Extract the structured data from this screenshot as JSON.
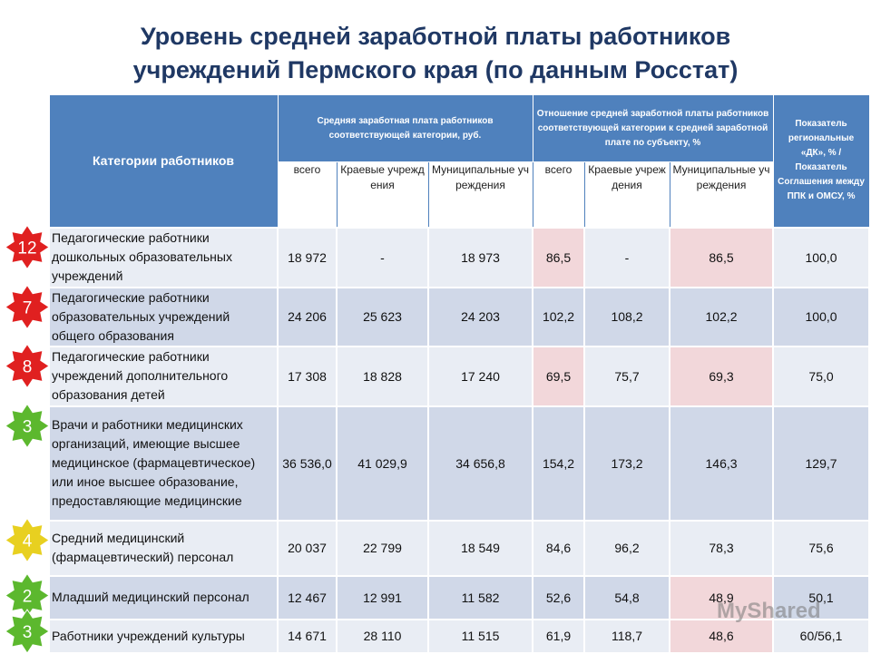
{
  "title": [
    "Уровень  средней заработной платы работников",
    "учреждений Пермского края (по данным Росстат)"
  ],
  "table": {
    "header": {
      "category": "Категории работников",
      "salary": "Средняя заработная плата работников соответствующей категории, руб.",
      "ratio": "Отношение средней заработной платы работников соответствующей категории к средней заработной плате по субъекту, %",
      "indicator": "Показатель региональные «ДК», % / Показатель Соглашения между ППК и ОМСУ, %",
      "sub": [
        "всего",
        "Краевые учреждения",
        "Муниципальные учреждения",
        "всего",
        "Краевые учреждения",
        "Муниципальные учреждения"
      ]
    },
    "rows": [
      {
        "badge": "12",
        "badge_color": "#e02020",
        "category": "Педагогические работники дошкольных образовательных учреждений",
        "cells": [
          "18 972",
          "-",
          "18 973",
          "86,5",
          "-",
          "86,5",
          "100,0"
        ],
        "highlight": [
          3,
          5
        ]
      },
      {
        "badge": "7",
        "badge_color": "#e02020",
        "category": "Педагогические работники образовательных учреждений общего образования",
        "cells": [
          "24 206",
          "25 623",
          "24 203",
          "102,2",
          "108,2",
          "102,2",
          "100,0"
        ],
        "highlight": []
      },
      {
        "badge": "8",
        "badge_color": "#e02020",
        "category": "Педагогические работники учреждений дополнительного образования детей",
        "cells": [
          "17 308",
          "18 828",
          "17 240",
          "69,5",
          "75,7",
          "69,3",
          "75,0"
        ],
        "highlight": [
          3,
          5
        ]
      },
      {
        "badge": "3",
        "badge_color": "#5cb82e",
        "category": "Врачи и работники медицинских организаций, имеющие высшее медицинское (фармацевтическое) или иное высшее образование, предоставляющие медицинские",
        "cells": [
          "36 536,0",
          "41 029,9",
          "34 656,8",
          "154,2",
          "173,2",
          "146,3",
          "129,7"
        ],
        "highlight": []
      },
      {
        "badge": "4",
        "badge_color": "#e8d020",
        "category": "Средний медицинский (фармацевтический) персонал",
        "cells": [
          "20 037",
          "22 799",
          "18 549",
          "84,6",
          "96,2",
          "78,3",
          "75,6"
        ],
        "highlight": []
      },
      {
        "badge": "2",
        "badge_color": "#5cb82e",
        "category": "Младший медицинский персонал",
        "cells": [
          "12 467",
          "12 991",
          "11 582",
          "52,6",
          "54,8",
          "48,9",
          "50,1"
        ],
        "highlight": [
          5
        ]
      },
      {
        "badge": "3",
        "badge_color": "#5cb82e",
        "category": "Работники учреждений культуры",
        "cells": [
          "14 671",
          "28 110",
          "11 515",
          "61,9",
          "118,7",
          "48,6",
          "60/56,1"
        ],
        "highlight": [
          5
        ]
      }
    ]
  },
  "watermark": "MyShared"
}
